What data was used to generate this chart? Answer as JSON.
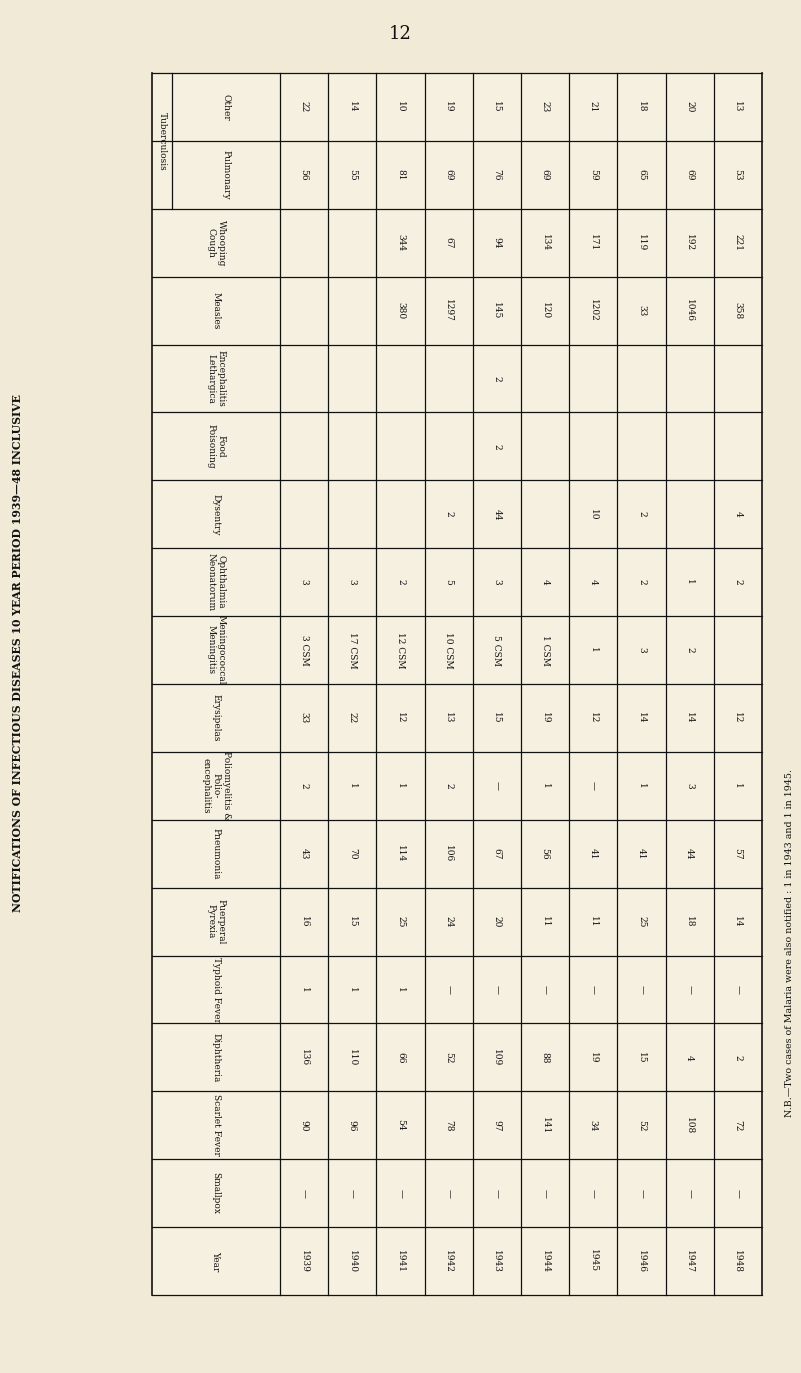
{
  "title_page": "12",
  "side_label": "NOTIFICATIONS OF INFECTIOUS DISEASES 10 YEAR PERIOD 1939—48 INCLUSIVE",
  "footnote": "N.B.—Two cases of Malaria were also notified : 1 in 1943 and 1 in 1945.",
  "bg_color": "#f0ead6",
  "table_bg": "#f5f0e0",
  "line_color": "#111111",
  "text_color": "#111111",
  "rows": [
    {
      "group": "Tuberculosis",
      "label": "Other",
      "values": [
        "22",
        "14",
        "10",
        "19",
        "15",
        "23",
        "21",
        "18",
        "20",
        "13"
      ]
    },
    {
      "group": "Tuberculosis",
      "label": "Pulmonary",
      "values": [
        "56",
        "55",
        "81",
        "69",
        "76",
        "69",
        "59",
        "65",
        "69",
        "53"
      ]
    },
    {
      "group": null,
      "label": "Whooping\nCough",
      "values": [
        "",
        "",
        "344",
        "67",
        "94",
        "134",
        "171",
        "119",
        "192",
        "221"
      ]
    },
    {
      "group": null,
      "label": "Measles",
      "values": [
        "",
        "",
        "380",
        "1297",
        "145",
        "120",
        "1202",
        "33",
        "1046",
        "358"
      ]
    },
    {
      "group": null,
      "label": "Encephalitis\nLethargica",
      "values": [
        "",
        "",
        "",
        "",
        "2",
        "",
        "",
        "",
        "",
        ""
      ]
    },
    {
      "group": null,
      "label": "Food\nPoisoning",
      "values": [
        "",
        "",
        "",
        "",
        "2",
        "",
        "",
        "",
        "",
        ""
      ]
    },
    {
      "group": null,
      "label": "Dysentry",
      "values": [
        "",
        "",
        "",
        "2",
        "44",
        "",
        "10",
        "2",
        "",
        "4"
      ]
    },
    {
      "group": null,
      "label": "Ophthalmia\nNeonatorum",
      "values": [
        "3",
        "3",
        "2",
        "5",
        "3",
        "4",
        "4",
        "2",
        "1",
        "2"
      ]
    },
    {
      "group": null,
      "label": "Meningococcal\nMeningitis",
      "values": [
        "3 CSM",
        "17 CSM",
        "12 CSM",
        "10 CSM",
        "5 CSM",
        "1 CSM",
        "1",
        "3",
        "2",
        ""
      ]
    },
    {
      "group": null,
      "label": "Erysipelas",
      "values": [
        "33",
        "22",
        "12",
        "13",
        "15",
        "19",
        "12",
        "14",
        "14",
        "12"
      ]
    },
    {
      "group": null,
      "label": "Poliomyelitis &\nPolio-\nencephalitis",
      "values": [
        "2",
        "1",
        "1",
        "2",
        "—",
        "1",
        "—",
        "1",
        "3",
        "1"
      ]
    },
    {
      "group": null,
      "label": "Pneumonia",
      "values": [
        "43",
        "70",
        "114",
        "106",
        "67",
        "56",
        "41",
        "41",
        "44",
        "57"
      ]
    },
    {
      "group": null,
      "label": "Puerperal\nPyrexia",
      "values": [
        "16",
        "15",
        "25",
        "24",
        "20",
        "11",
        "11",
        "25",
        "18",
        "14"
      ]
    },
    {
      "group": null,
      "label": "Typhoid Fever",
      "values": [
        "1",
        "1",
        "1",
        "—",
        "—",
        "—",
        "—",
        "—",
        "—",
        "—"
      ]
    },
    {
      "group": null,
      "label": "Diphtheria",
      "values": [
        "136",
        "110",
        "66",
        "52",
        "109",
        "88",
        "19",
        "15",
        "4",
        "2"
      ]
    },
    {
      "group": null,
      "label": "Scarlet Fever",
      "values": [
        "90",
        "96",
        "54",
        "78",
        "97",
        "141",
        "34",
        "52",
        "108",
        "72"
      ]
    },
    {
      "group": null,
      "label": "Smallpox",
      "values": [
        "—",
        "—",
        "—",
        "—",
        "—",
        "—",
        "—",
        "—",
        "—",
        "—"
      ]
    },
    {
      "group": null,
      "label": "Year",
      "values": [
        "1939",
        "1940",
        "1941",
        "1942",
        "1943",
        "1944",
        "1945",
        "1946",
        "1947",
        "1948"
      ]
    }
  ]
}
